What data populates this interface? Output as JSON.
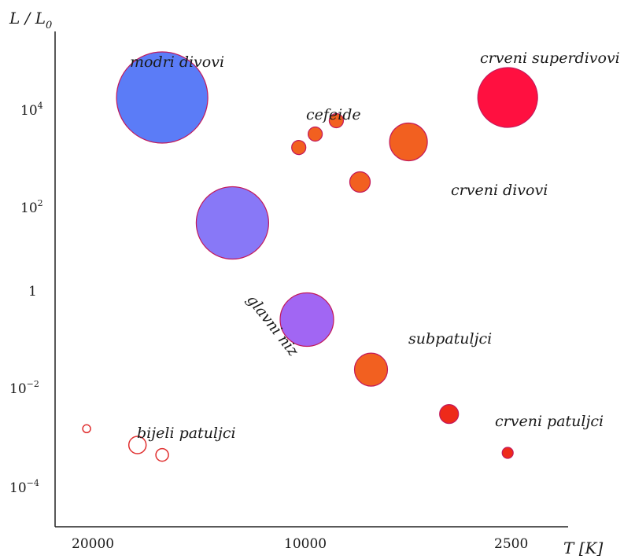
{
  "chart_data": {
    "type": "scatter",
    "title": "",
    "xlabel": "T [K]",
    "ylabel": "L / L0",
    "x_ticks": [
      20000,
      10000,
      2500
    ],
    "y_ticks": [
      {
        "base": "10",
        "exp": "4"
      },
      {
        "base": "10",
        "exp": "2"
      },
      {
        "base": "1",
        "exp": ""
      },
      {
        "base": "10",
        "exp": "−2"
      },
      {
        "base": "10",
        "exp": "−4"
      }
    ],
    "y_scale": "log",
    "grid": false,
    "groups": [
      {
        "name": "modri divovi",
        "color": "#5b7cf7",
        "filled": true,
        "points": [
          {
            "T": 15000,
            "L": 20000
          }
        ]
      },
      {
        "name": "glavni niz",
        "color": "#8878f7",
        "filled": true,
        "points": [
          {
            "T": 10500,
            "L": 30
          }
        ]
      },
      {
        "name": "",
        "color": "#a166f3",
        "filled": true,
        "points": [
          {
            "T": 7200,
            "L": 0.2
          }
        ]
      },
      {
        "name": "cefeide",
        "color": "#f26020",
        "filled": true,
        "points": [
          {
            "T": 7500,
            "L": 1500
          },
          {
            "T": 6900,
            "L": 3000
          },
          {
            "T": 6200,
            "L": 6000
          }
        ]
      },
      {
        "name": "crveni divovi",
        "color": "#f26020",
        "filled": true,
        "points": [
          {
            "T": 5500,
            "L": 250
          },
          {
            "T": 4300,
            "L": 2000
          }
        ]
      },
      {
        "name": "crveni superdivovi",
        "color": "#ff1040",
        "filled": true,
        "points": [
          {
            "T": 2600,
            "L": 20000
          }
        ]
      },
      {
        "name": "subpatuljci",
        "color": "#f26020",
        "filled": true,
        "points": [
          {
            "T": 5200,
            "L": 0.015
          }
        ]
      },
      {
        "name": "crveni patuljci",
        "color": "#ee2a1a",
        "filled": true,
        "points": [
          {
            "T": 3500,
            "L": 0.0015
          },
          {
            "T": 2600,
            "L": 0.0002
          }
        ]
      },
      {
        "name": "bijeli patuljci",
        "color": "#e03030",
        "filled": false,
        "points": [
          {
            "T": 22000,
            "L": 0.0007
          },
          {
            "T": 17000,
            "L": 0.0003
          },
          {
            "T": 15000,
            "L": 0.00018
          }
        ]
      }
    ],
    "annotations": [
      "modri divovi",
      "cefeide",
      "crveni superdivovi",
      "crveni divovi",
      "glavni niz",
      "subpatuljci",
      "crveni patuljci",
      "bijeli patuljci"
    ]
  }
}
